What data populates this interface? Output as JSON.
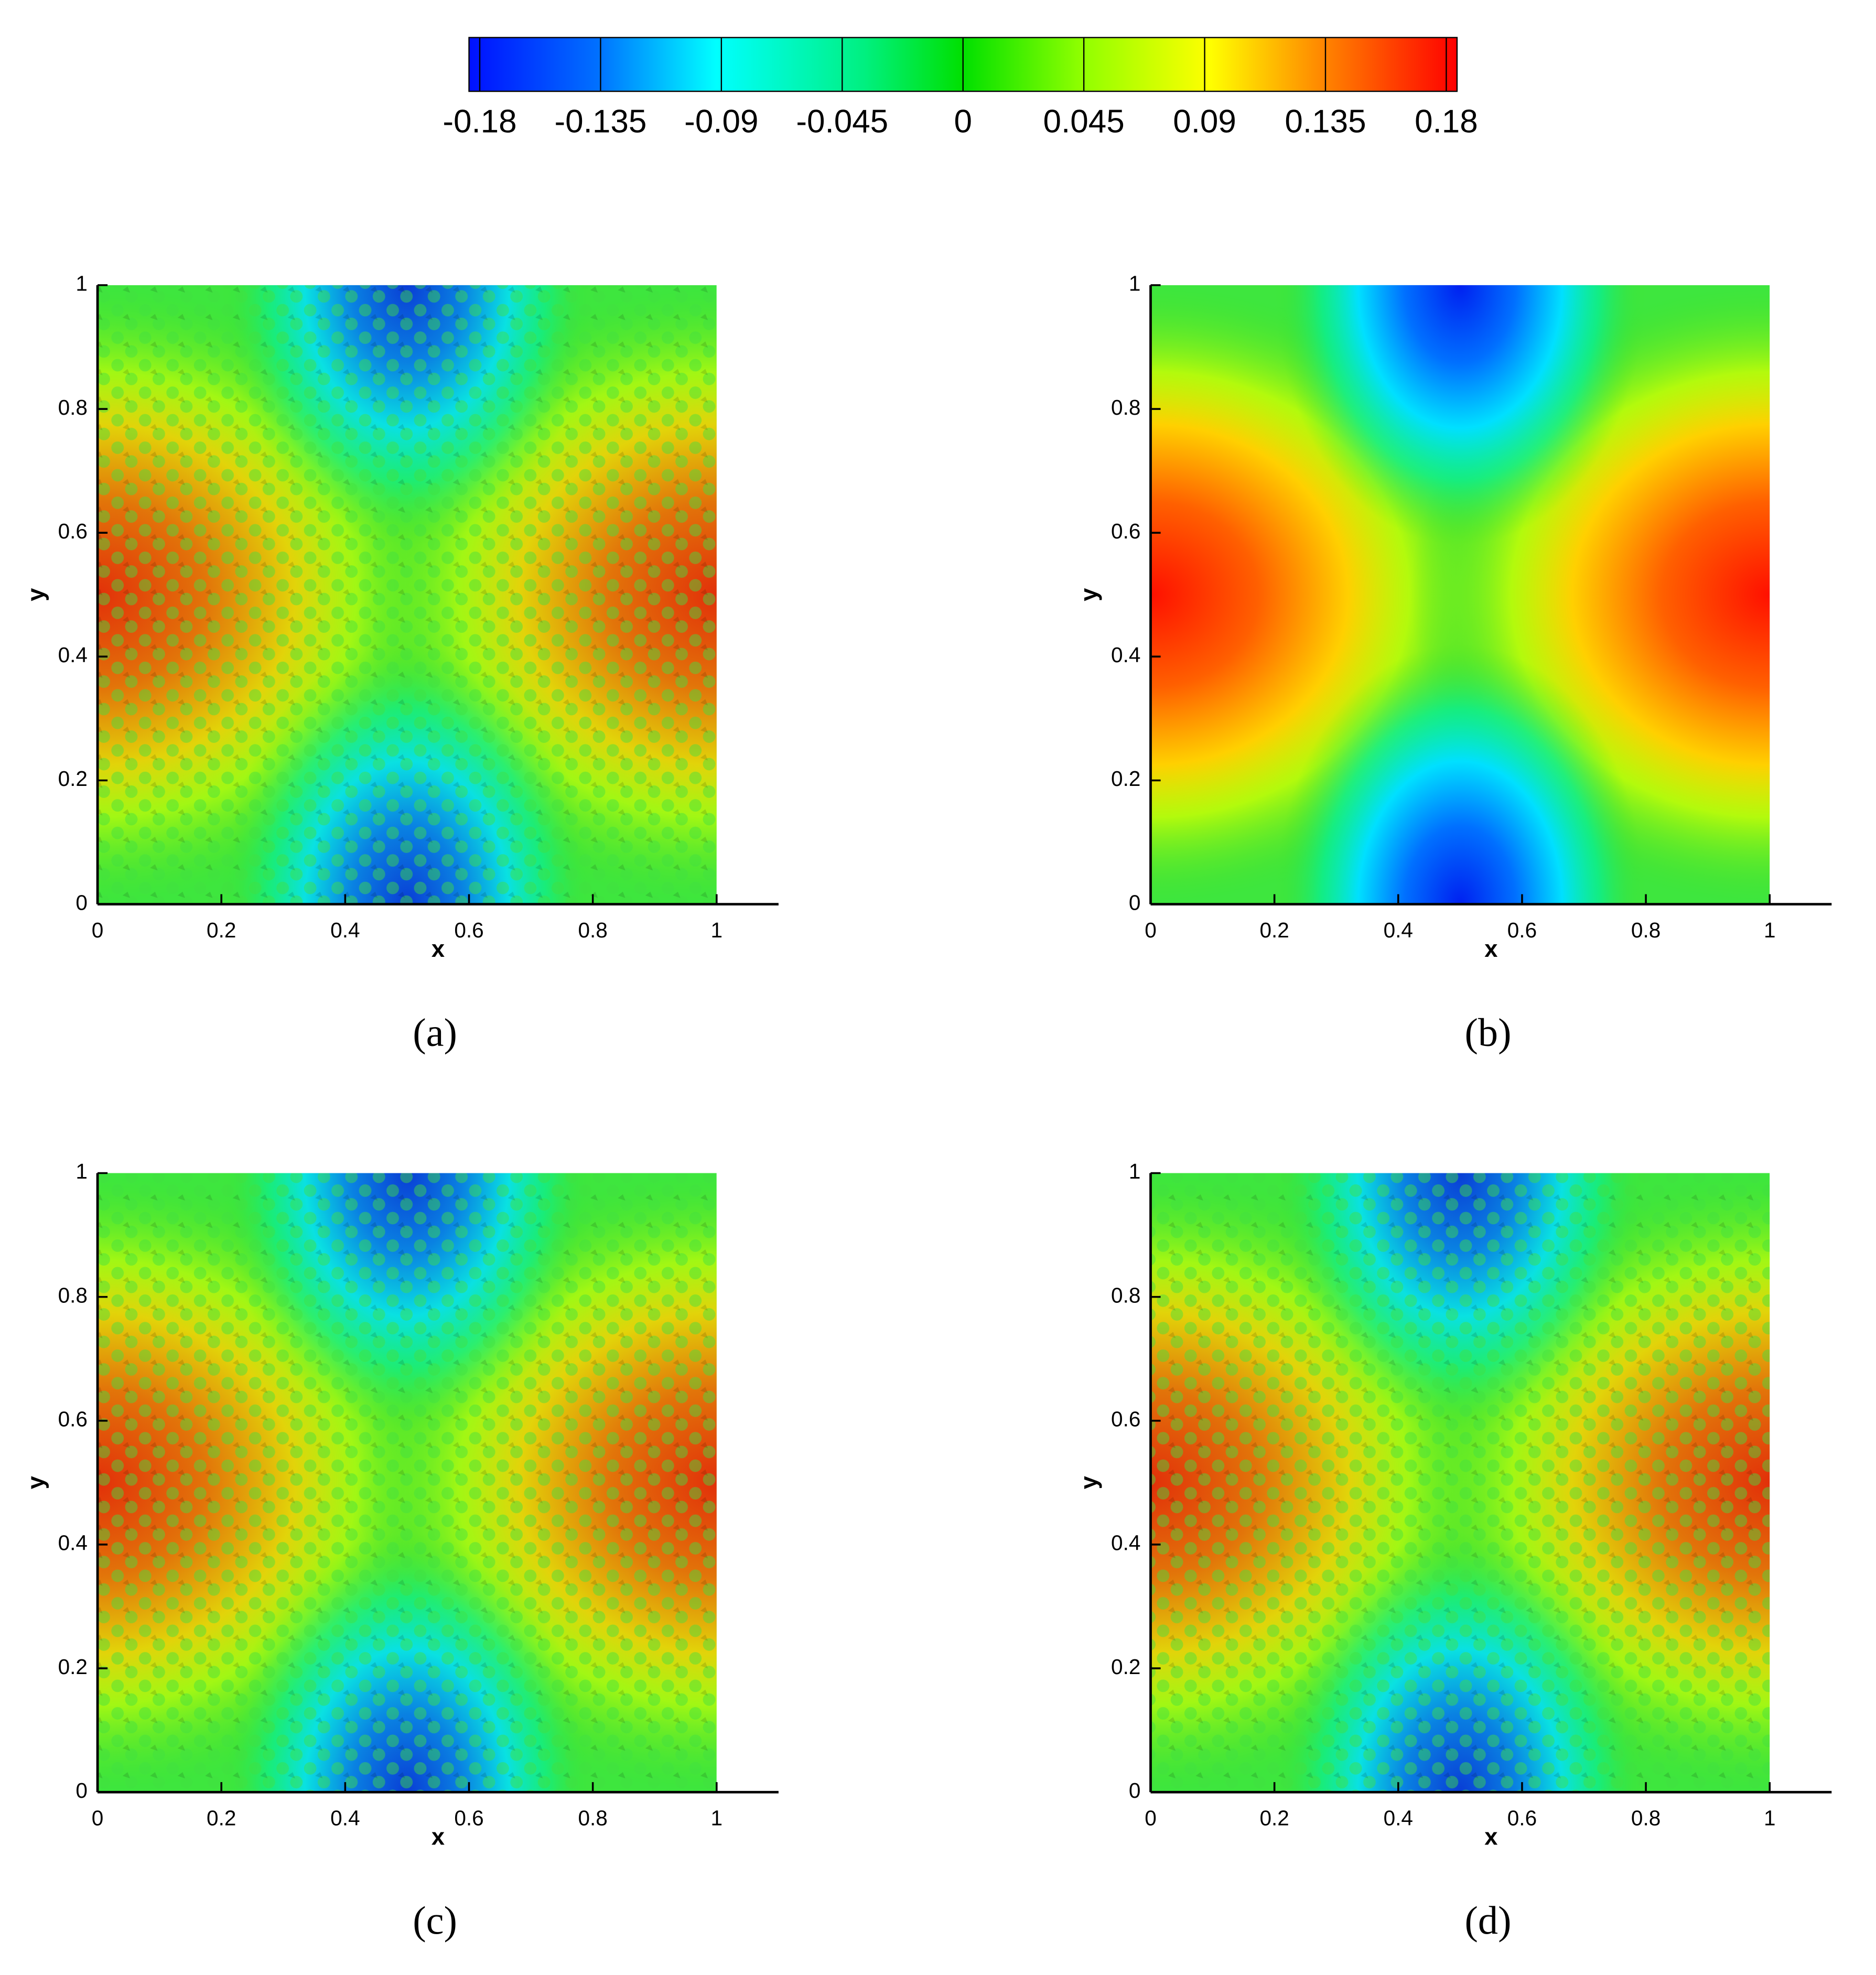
{
  "colorbar": {
    "lim": [
      -0.184,
      0.184
    ],
    "ticks": [
      -0.18,
      -0.135,
      -0.09,
      -0.045,
      0,
      0.045,
      0.09,
      0.135,
      0.18
    ]
  },
  "chart_data": [
    {
      "type": "contour",
      "caption": "(a)",
      "x_label": "x",
      "y_label": "y",
      "xlim": [
        0,
        1.1
      ],
      "ylim": [
        0,
        1
      ],
      "xticks": [
        0,
        0.2,
        0.4,
        0.6,
        0.8,
        1
      ],
      "yticks": [
        0,
        0.2,
        0.4,
        0.6,
        0.8,
        1
      ]
    },
    {
      "type": "contour",
      "caption": "(b)",
      "x_label": "x",
      "y_label": "y",
      "xlim": [
        0,
        1.1
      ],
      "ylim": [
        0,
        1
      ],
      "xticks": [
        0,
        0.2,
        0.4,
        0.6,
        0.8,
        1
      ],
      "yticks": [
        0,
        0.2,
        0.4,
        0.6,
        0.8,
        1
      ]
    },
    {
      "type": "contour",
      "caption": "(c)",
      "x_label": "x",
      "y_label": "y",
      "xlim": [
        0,
        1.1
      ],
      "ylim": [
        0,
        1
      ],
      "xticks": [
        0,
        0.2,
        0.4,
        0.6,
        0.8,
        1
      ],
      "yticks": [
        0,
        0.2,
        0.4,
        0.6,
        0.8,
        1
      ]
    },
    {
      "type": "contour",
      "caption": "(d)",
      "x_label": "x",
      "y_label": "y",
      "xlim": [
        0,
        1.1
      ],
      "ylim": [
        0,
        1
      ],
      "xticks": [
        0,
        0.2,
        0.4,
        0.6,
        0.8,
        1
      ],
      "yticks": [
        0,
        0.2,
        0.4,
        0.6,
        0.8,
        1
      ]
    }
  ]
}
